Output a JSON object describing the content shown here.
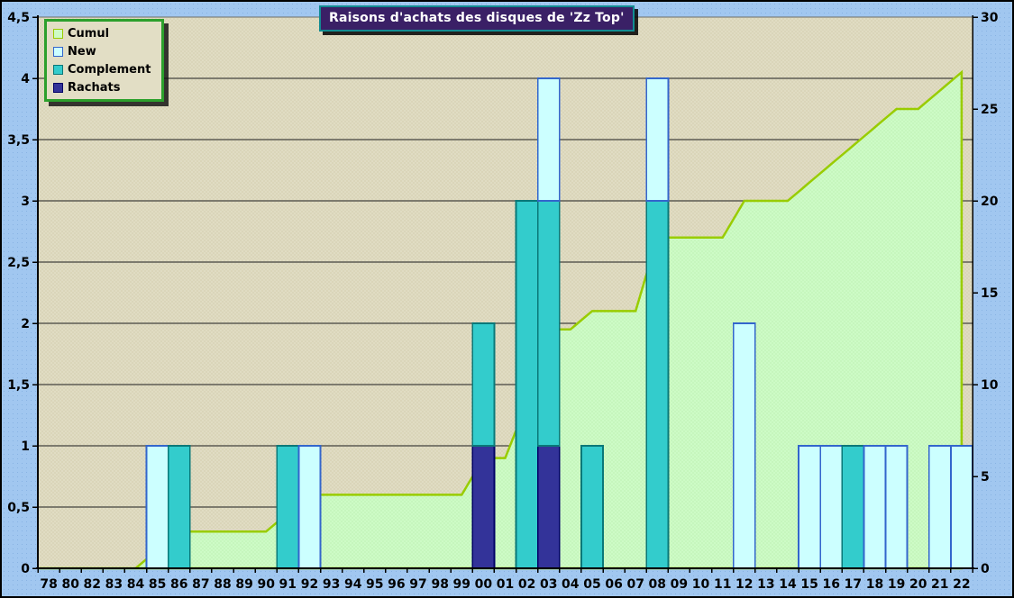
{
  "title": {
    "text": "Raisons d'achats des disques de 'Zz Top'",
    "bg": "#3A2066",
    "border": "#128C92",
    "text_color": "#FFFFFF"
  },
  "legend": {
    "box_border": "#2CA02C",
    "box_bg": "#E2DEC5"
  },
  "plot": {
    "bg": "#E0DCC3",
    "bg_dot": "#CCC5A0",
    "outer_bg": "#A1C7F0",
    "outer_bg_dot": "#88B3E3",
    "grid_color": "#1A1A1A",
    "axis_color": "#000000",
    "frame_color": "#6E6E64"
  },
  "chart_data": {
    "type": "combo-area-stacked-columns",
    "categories": [
      "78",
      "80",
      "82",
      "83",
      "84",
      "85",
      "86",
      "87",
      "88",
      "89",
      "90",
      "91",
      "92",
      "93",
      "94",
      "95",
      "96",
      "97",
      "98",
      "99",
      "00",
      "01",
      "02",
      "03",
      "04",
      "05",
      "06",
      "07",
      "08",
      "09",
      "10",
      "11",
      "12",
      "13",
      "14",
      "15",
      "16",
      "17",
      "18",
      "19",
      "20",
      "21",
      "22"
    ],
    "series": [
      {
        "name": "Cumul",
        "chart": "area",
        "axis": "right",
        "fill": "#CDFBC6",
        "fill_dot": "#B6EAA6",
        "border": "#99CC00",
        "values": [
          0,
          0,
          0,
          0,
          0,
          1,
          2,
          2,
          2,
          2,
          2,
          3,
          4,
          4,
          4,
          4,
          4,
          4,
          4,
          4,
          6,
          6,
          9,
          13,
          13,
          14,
          14,
          14,
          18,
          18,
          18,
          18,
          20,
          20,
          20,
          21,
          22,
          23,
          24,
          25,
          25,
          26,
          27
        ]
      },
      {
        "name": "New",
        "chart": "column",
        "axis": "left",
        "fill": "#CCFFFF",
        "border": "#3366CC",
        "values": [
          0,
          0,
          0,
          0,
          0,
          1,
          0,
          0,
          0,
          0,
          0,
          0,
          1,
          0,
          0,
          0,
          0,
          0,
          0,
          0,
          0,
          0,
          0,
          1,
          0,
          0,
          0,
          0,
          1,
          0,
          0,
          0,
          2,
          0,
          0,
          1,
          1,
          0,
          1,
          1,
          0,
          1,
          1
        ]
      },
      {
        "name": "Complement",
        "chart": "column",
        "axis": "left",
        "fill": "#33CCCC",
        "border": "#0A7878",
        "values": [
          0,
          0,
          0,
          0,
          0,
          0,
          1,
          0,
          0,
          0,
          0,
          1,
          0,
          0,
          0,
          0,
          0,
          0,
          0,
          0,
          1,
          0,
          3,
          2,
          0,
          1,
          0,
          0,
          3,
          0,
          0,
          0,
          0,
          0,
          0,
          0,
          0,
          1,
          0,
          0,
          0,
          0,
          0
        ]
      },
      {
        "name": "Rachats",
        "chart": "column",
        "axis": "left",
        "fill": "#333399",
        "border": "#000066",
        "values": [
          0,
          0,
          0,
          0,
          0,
          0,
          0,
          0,
          0,
          0,
          0,
          0,
          0,
          0,
          0,
          0,
          0,
          0,
          0,
          0,
          1,
          0,
          0,
          1,
          0,
          0,
          0,
          0,
          0,
          0,
          0,
          0,
          0,
          0,
          0,
          0,
          0,
          0,
          0,
          0,
          0,
          0,
          0
        ]
      }
    ],
    "left_axis": {
      "min": 0,
      "max": 4.5,
      "step": 0.5,
      "tick_labels": [
        "0",
        "0,5",
        "1",
        "1,5",
        "2",
        "2,5",
        "3",
        "3,5",
        "4",
        "4,5"
      ]
    },
    "right_axis": {
      "min": 0,
      "max": 30,
      "step": 5,
      "tick_labels": [
        "0",
        "5",
        "10",
        "15",
        "20",
        "25",
        "30"
      ]
    },
    "grid": "horizontal",
    "legend_position": "top-left-overlay"
  }
}
